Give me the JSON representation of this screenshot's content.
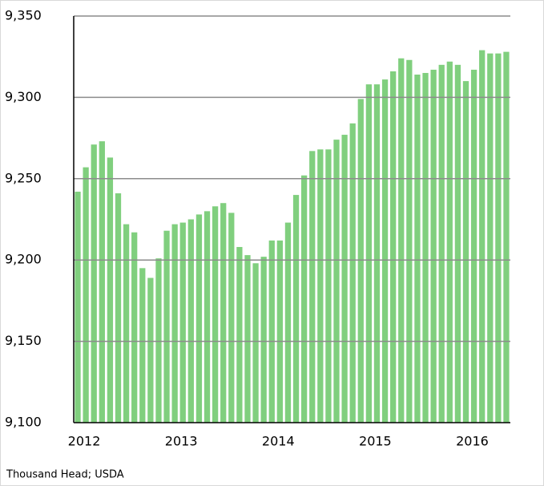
{
  "chart_data": {
    "type": "bar",
    "source": "Thousand Head; USDA",
    "categories": [
      "2012",
      null,
      null,
      null,
      null,
      null,
      null,
      null,
      null,
      null,
      null,
      null,
      "2013",
      null,
      null,
      null,
      null,
      null,
      null,
      null,
      null,
      null,
      null,
      null,
      "2014",
      null,
      null,
      null,
      null,
      null,
      null,
      null,
      null,
      null,
      null,
      null,
      "2015",
      null,
      null,
      null,
      null,
      null,
      null,
      null,
      null,
      null,
      null,
      null,
      "2016",
      null,
      null,
      null,
      null,
      null
    ],
    "values": [
      9242,
      9257,
      9271,
      9273,
      9263,
      9241,
      9222,
      9217,
      9195,
      9189,
      9201,
      9218,
      9222,
      9223,
      9225,
      9228,
      9230,
      9233,
      9235,
      9229,
      9208,
      9203,
      9198,
      9202,
      9212,
      9212,
      9223,
      9240,
      9252,
      9267,
      9268,
      9268,
      9274,
      9277,
      9284,
      9299,
      9308,
      9308,
      9311,
      9316,
      9324,
      9323,
      9314,
      9315,
      9317,
      9320,
      9322,
      9320,
      9310,
      9317,
      9329,
      9327,
      9327,
      9328
    ],
    "color": "#80cf7e",
    "ylim": [
      9100,
      9350
    ],
    "yticks": [
      {
        "value": 9100,
        "label": "9,100"
      },
      {
        "value": 9150,
        "label": "9,150"
      },
      {
        "value": 9200,
        "label": "9,200"
      },
      {
        "value": 9250,
        "label": "9,250"
      },
      {
        "value": 9300,
        "label": "9,300"
      },
      {
        "value": 9350,
        "label": "9,350"
      }
    ],
    "grid": true
  }
}
